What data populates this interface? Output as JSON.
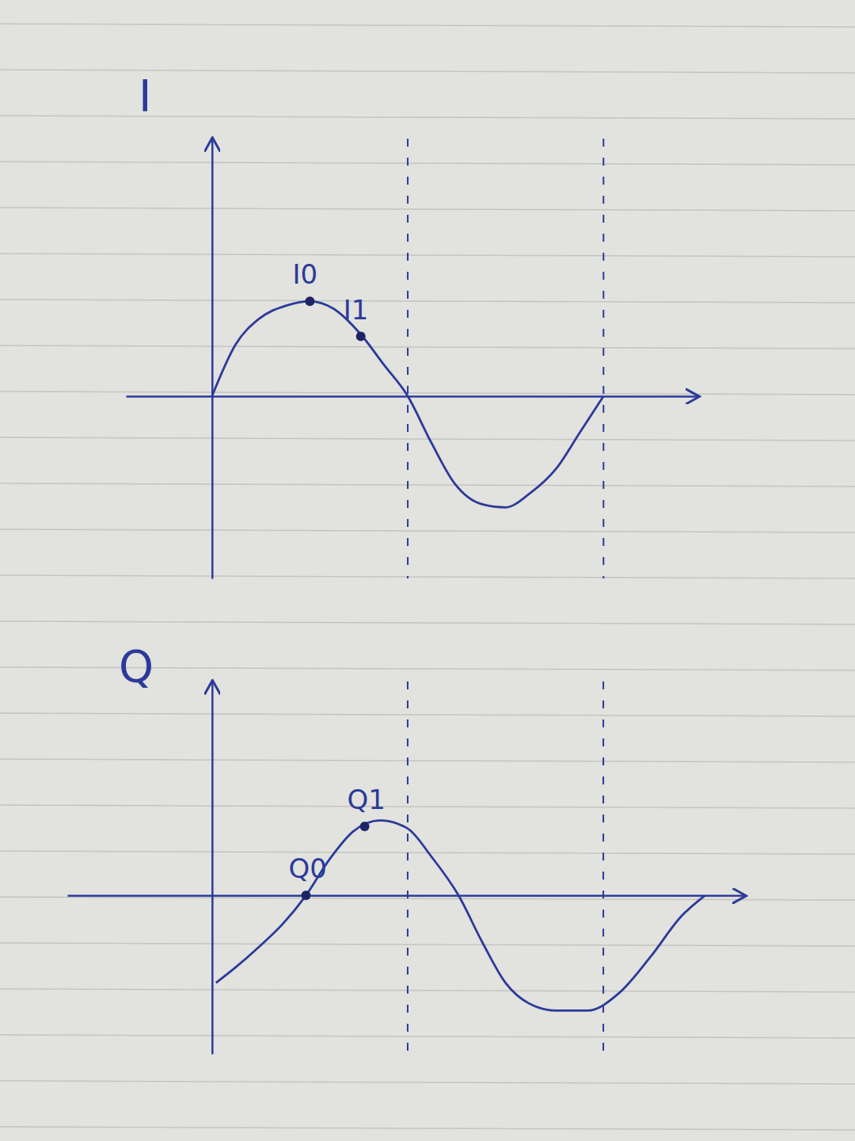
{
  "chart_data": [
    {
      "type": "line",
      "y_label": "I",
      "color": "#2b3a9a",
      "x": [
        0,
        0.06,
        0.12,
        0.19,
        0.25,
        0.31,
        0.38,
        0.44,
        0.5,
        0.56,
        0.62,
        0.69,
        0.75,
        0.81,
        0.88,
        0.94,
        1.0
      ],
      "values": [
        0,
        0.5,
        0.75,
        0.88,
        0.92,
        0.85,
        0.6,
        0.3,
        0,
        -0.45,
        -0.85,
        -1.05,
        -1.08,
        -0.95,
        -0.7,
        -0.35,
        0
      ],
      "xlim": [
        -0.22,
        1.24
      ],
      "ylim": [
        -1.77,
        2.5
      ],
      "xticks": [],
      "yticks": [],
      "tick_labels": false,
      "points": [
        {
          "label": "I0",
          "x": 0.25,
          "y": 0.92
        },
        {
          "label": "I1",
          "x": 0.38,
          "y": 0.58
        }
      ],
      "vlines": [
        0.5,
        1.0
      ]
    },
    {
      "type": "line",
      "y_label": "Q",
      "color": "#2b3a9a",
      "x": [
        0.01,
        0.06,
        0.12,
        0.18,
        0.24,
        0.3,
        0.36,
        0.43,
        0.5,
        0.56,
        0.63,
        0.69,
        0.75,
        0.81,
        0.88,
        0.96,
        1.04,
        1.12,
        1.2,
        1.26
      ],
      "values": [
        -0.85,
        -0.7,
        -0.5,
        -0.28,
        0,
        0.35,
        0.62,
        0.73,
        0.65,
        0.38,
        0,
        -0.45,
        -0.85,
        -1.05,
        -1.12,
        -1.12,
        -0.95,
        -0.6,
        -0.2,
        0
      ],
      "xlim": [
        -0.37,
        1.36
      ],
      "ylim": [
        -1.54,
        2.08
      ],
      "xticks": [],
      "yticks": [],
      "tick_labels": false,
      "points": [
        {
          "label": "Q0",
          "x": 0.24,
          "y": 0
        },
        {
          "label": "Q1",
          "x": 0.39,
          "y": 0.67
        }
      ],
      "vlines": [
        0.5,
        1.0
      ]
    }
  ]
}
